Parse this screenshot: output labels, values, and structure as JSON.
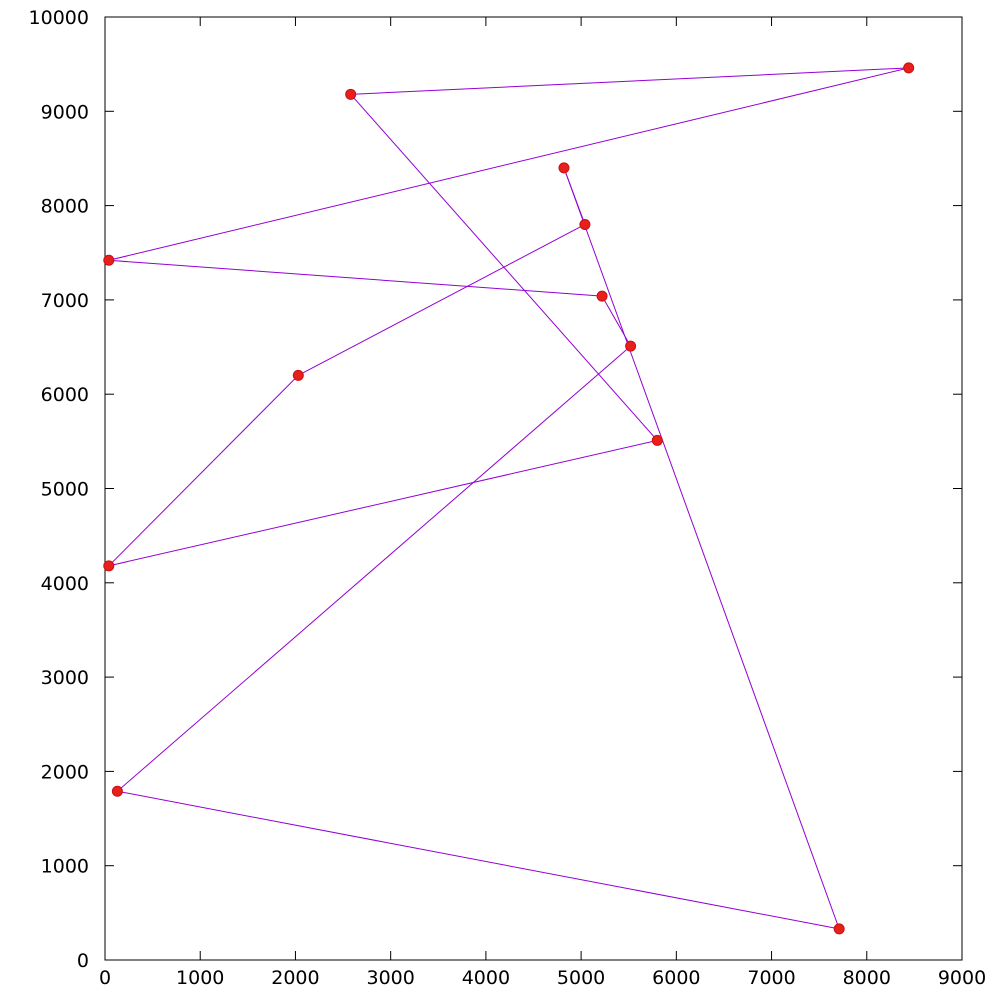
{
  "chart_data": {
    "type": "line",
    "title": "",
    "xlabel": "",
    "ylabel": "",
    "xlim": [
      0,
      9000
    ],
    "ylim": [
      0,
      10000
    ],
    "x_ticks": [
      0,
      1000,
      2000,
      3000,
      4000,
      5000,
      6000,
      7000,
      8000,
      9000
    ],
    "y_ticks": [
      0,
      1000,
      2000,
      3000,
      4000,
      5000,
      6000,
      7000,
      8000,
      9000,
      10000
    ],
    "grid": false,
    "legend": "none",
    "colors": {
      "line": "#9400d3",
      "marker": "#e8201c",
      "marker_edge": "#c81010",
      "axis": "#000000"
    },
    "series": [
      {
        "points": [
          {
            "x": 4820,
            "y": 8400
          },
          {
            "x": 5040,
            "y": 7800
          },
          {
            "x": 2030,
            "y": 6200
          },
          {
            "x": 40,
            "y": 4180
          },
          {
            "x": 5800,
            "y": 5510
          },
          {
            "x": 2580,
            "y": 9180
          },
          {
            "x": 8440,
            "y": 9460
          },
          {
            "x": 40,
            "y": 7420
          },
          {
            "x": 5220,
            "y": 7040
          },
          {
            "x": 5520,
            "y": 6510
          },
          {
            "x": 130,
            "y": 1790
          },
          {
            "x": 7710,
            "y": 330
          },
          {
            "x": 4820,
            "y": 8400
          }
        ]
      }
    ]
  }
}
